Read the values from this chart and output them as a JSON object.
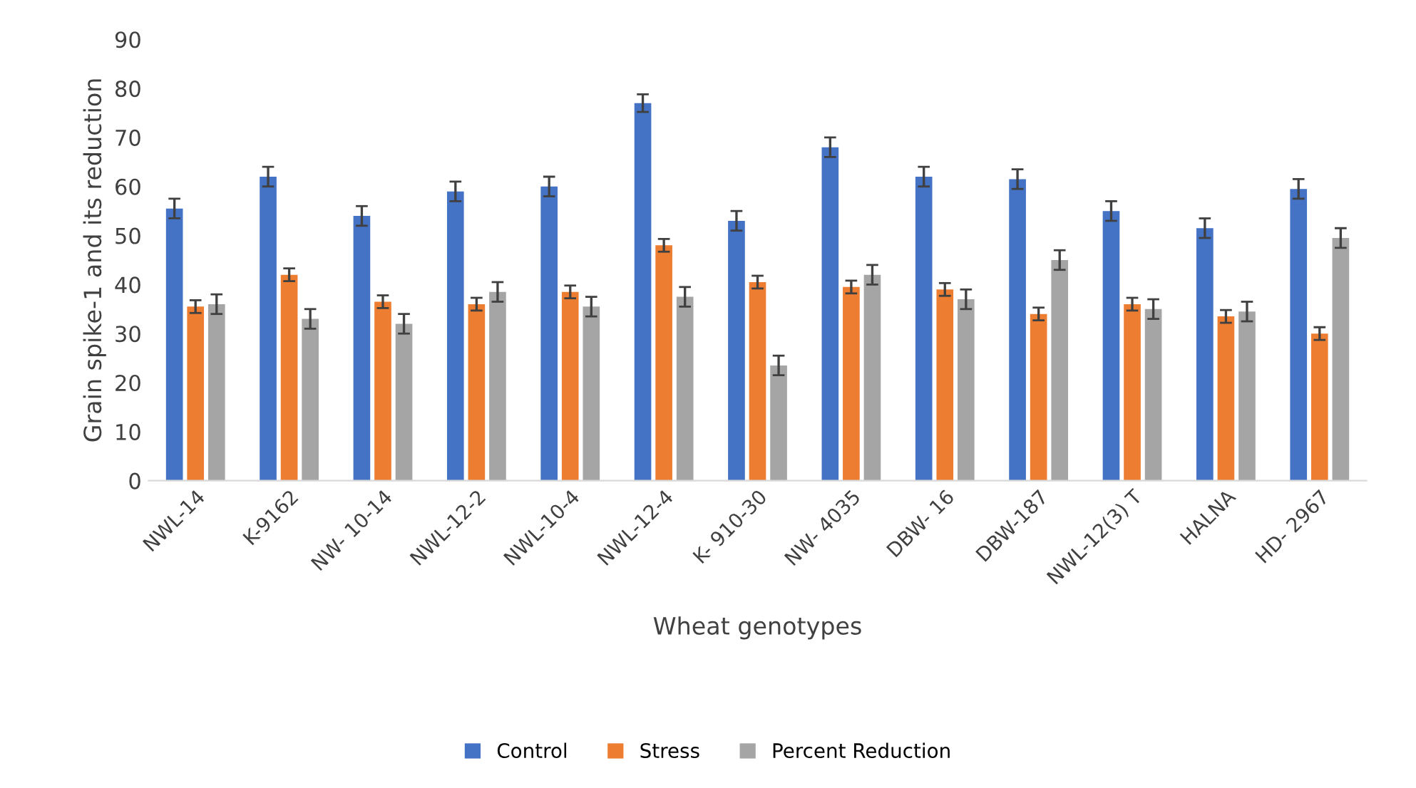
{
  "chart_data": {
    "type": "bar",
    "xlabel": "Wheat genotypes",
    "ylabel": "Grain spike-1 and its reduction",
    "categories": [
      "NWL-14",
      "K-9162",
      "NW- 10-14",
      "NWL-12-2",
      "NWL-10-4",
      "NWL-12-4",
      "K- 910-30",
      "NW- 4035",
      "DBW- 16",
      "DBW-187",
      "NWL-12(3) T",
      "HALNA",
      "HD- 2967"
    ],
    "series": [
      {
        "name": "Control",
        "color": "#4472c4",
        "values": [
          55.5,
          62,
          54,
          59,
          60,
          77,
          53,
          68,
          62,
          61.5,
          55,
          51.5,
          59.5
        ],
        "errors": [
          2,
          2,
          2,
          2,
          2,
          1.8,
          2,
          2,
          2,
          2,
          2,
          2,
          2
        ]
      },
      {
        "name": "Stress",
        "color": "#ed7d31",
        "values": [
          35.5,
          42,
          36.5,
          36,
          38.5,
          48,
          40.5,
          39.5,
          39,
          34,
          36,
          33.5,
          30
        ],
        "errors": [
          1.3,
          1.3,
          1.3,
          1.3,
          1.3,
          1.3,
          1.3,
          1.3,
          1.3,
          1.3,
          1.3,
          1.3,
          1.3
        ]
      },
      {
        "name": "Percent Reduction",
        "color": "#a5a5a5",
        "values": [
          36,
          33,
          32,
          38.5,
          35.5,
          37.5,
          23.5,
          42,
          37,
          45,
          35,
          34.5,
          49.5
        ],
        "errors": [
          2,
          2,
          2,
          2,
          2,
          2,
          2,
          2,
          2,
          2,
          2,
          2,
          2
        ]
      }
    ],
    "ylim": [
      0,
      90
    ],
    "yticks": [
      0,
      10,
      20,
      30,
      40,
      50,
      60,
      70,
      80,
      90
    ],
    "grid": false,
    "legend": "bottom"
  }
}
